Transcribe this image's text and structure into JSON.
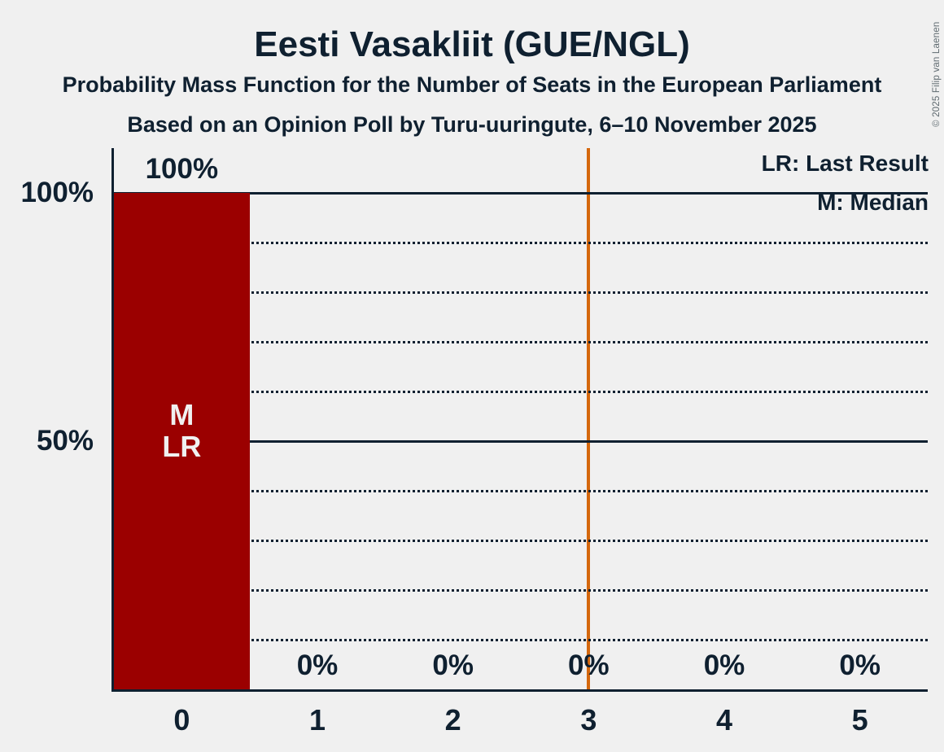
{
  "title": "Eesti Vasakliit (GUE/NGL)",
  "subtitle1": "Probability Mass Function for the Number of Seats in the European Parliament",
  "subtitle2": "Based on an Opinion Poll by Turu-uuringute, 6–10 November 2025",
  "copyright": "© 2025 Filip van Laenen",
  "legend": {
    "lr": "LR: Last Result",
    "m": "M: Median"
  },
  "colors": {
    "background": "#f0f0f0",
    "text": "#0f2030",
    "bar": "#9b0000",
    "bar_inner_label": "#f0f0f0",
    "reference_line": "#d4670d",
    "grid": "#0f2030",
    "copyright": "#5f6a70"
  },
  "y_axis": {
    "labels": [
      {
        "value": 100,
        "text": "100%"
      },
      {
        "value": 50,
        "text": "50%"
      }
    ]
  },
  "chart_data": {
    "type": "bar",
    "title": "Eesti Vasakliit (GUE/NGL)",
    "categories": [
      "0",
      "1",
      "2",
      "3",
      "4",
      "5"
    ],
    "values": [
      100,
      0,
      0,
      0,
      0,
      0
    ],
    "value_labels": [
      "100%",
      "0%",
      "0%",
      "0%",
      "0%",
      "0%"
    ],
    "ylim": [
      0,
      100
    ],
    "grid": "horizontal dotted every 10%, solid at 50% and 100%",
    "legend_position": "top-right",
    "annotations": {
      "median": {
        "seat": 0,
        "label": "M"
      },
      "last_result": {
        "seat": 0,
        "label": "LR"
      },
      "reference_line_x": 3.5
    }
  }
}
